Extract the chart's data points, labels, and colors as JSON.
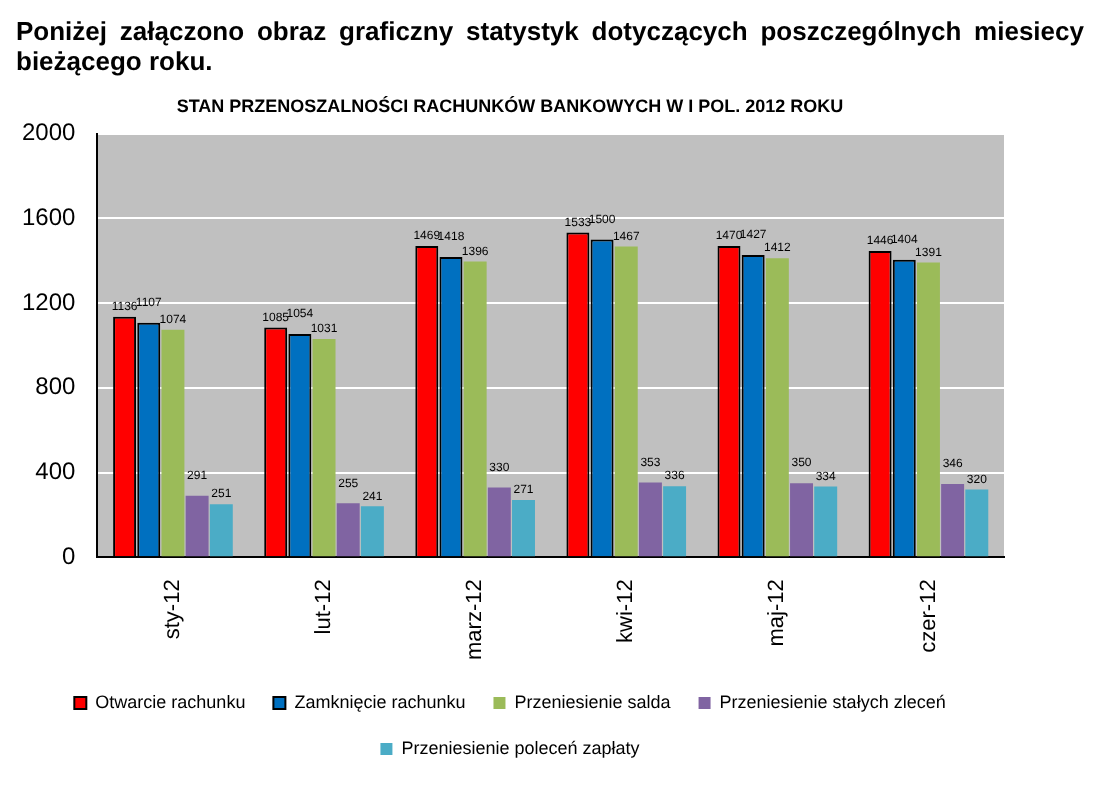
{
  "chart_data": {
    "type": "bar",
    "title": "STAN PRZENOSZALNOŚCI RACHUNKÓW BANKOWYCH W I POL. 2012 ROKU",
    "annotations": [
      "Poniżej załączono obraz graficzny statystyk dotyczących poszczególnych miesiecy bieżącego roku."
    ],
    "categories": [
      "sty-12",
      "lut-12",
      "marz-12",
      "kwi-12",
      "maj-12",
      "czer-12"
    ],
    "series": [
      {
        "name": "Otwarcie rachunku",
        "color": "#ff0000",
        "values": [
          1136,
          1085,
          1469,
          1533,
          1470,
          1446
        ]
      },
      {
        "name": "Zamknięcie rachunku",
        "color": "#0070c0",
        "values": [
          1107,
          1054,
          1418,
          1500,
          1427,
          1404
        ]
      },
      {
        "name": "Przeniesienie salda",
        "color": "#9bbb59",
        "values": [
          1074,
          1031,
          1396,
          1467,
          1412,
          1391
        ]
      },
      {
        "name": "Przeniesienie stałych zleceń",
        "color": "#8064a2",
        "values": [
          291,
          255,
          330,
          353,
          350,
          346
        ]
      },
      {
        "name": "Przeniesienie poleceń zapłaty",
        "color": "#4bacc6",
        "values": [
          251,
          241,
          271,
          336,
          334,
          320
        ]
      }
    ],
    "ylim": [
      0,
      2000
    ],
    "yticks": [
      0,
      400,
      800,
      1200,
      1600,
      2000
    ],
    "grid": "y",
    "legend": "bottom",
    "data_labels": true
  }
}
